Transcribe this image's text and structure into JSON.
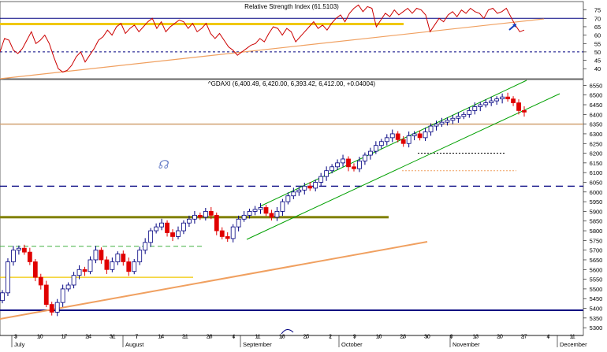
{
  "colors": {
    "background": "#ffffff",
    "bull": "#000080",
    "bear": "#e00000",
    "rsi_line": "#cc0000",
    "trend_orange": "#f0a060",
    "support_tan": "#d0a070",
    "olive": "#808000",
    "yellow": "#f0c800",
    "navy": "#000080",
    "channel_green": "#00a000",
    "green_dash": "#40b040",
    "grid_text": "#000000"
  },
  "chart_data": [
    {
      "type": "line",
      "id": "rsi",
      "title": "Relative Strength Index (61.5103)",
      "yticks": [
        40,
        45,
        50,
        55,
        60,
        65,
        70,
        75
      ],
      "ylim": [
        34,
        80
      ],
      "levels": {
        "upper": 70,
        "lower": 50
      },
      "series": [
        {
          "values": [
            50,
            58,
            57,
            51,
            49,
            52,
            57,
            62,
            55,
            57,
            60,
            55,
            47,
            40,
            38,
            39,
            42,
            47,
            50,
            44,
            48,
            52,
            57,
            59,
            63,
            60,
            65,
            67,
            61,
            64,
            66,
            62,
            65,
            68,
            70,
            64,
            68,
            62,
            65,
            67,
            69,
            68,
            64,
            67,
            62,
            64,
            67,
            61,
            58,
            61,
            57,
            53,
            51,
            48,
            50,
            52,
            54,
            55,
            58,
            56,
            61,
            65,
            64,
            60,
            64,
            62,
            56,
            59,
            62,
            65,
            68,
            64,
            66,
            63,
            67,
            70,
            72,
            68,
            73,
            76,
            78,
            74,
            77,
            76,
            65,
            69,
            73,
            71,
            75,
            72,
            74,
            76,
            73,
            76,
            75,
            72,
            62,
            66,
            70,
            68,
            72,
            74,
            71,
            75,
            73,
            76,
            74,
            73,
            70,
            75,
            76,
            73,
            74,
            76,
            71,
            66,
            62,
            63
          ]
        }
      ]
    },
    {
      "type": "candlestick",
      "id": "price",
      "title": "^GDAXI (6,400.49, 6,420.00, 6,393.42, 6,412.00, +0.04004)",
      "ylim": [
        5260,
        6580
      ],
      "yticks": [
        5300,
        5350,
        5400,
        5450,
        5500,
        5550,
        5600,
        5650,
        5700,
        5750,
        5800,
        5850,
        5900,
        5950,
        6000,
        6050,
        6100,
        6150,
        6200,
        6250,
        6300,
        6350,
        6400,
        6450,
        6500,
        6550
      ],
      "xticks": [
        "3",
        "10",
        "17",
        "24",
        "31",
        "7",
        "14",
        "21",
        "28",
        "4",
        "11",
        "18",
        "25",
        "2",
        "9",
        "16",
        "23",
        "30",
        "6",
        "13",
        "20",
        "27",
        "4",
        "11"
      ],
      "months": [
        "July",
        "August",
        "September",
        "October",
        "November",
        "December"
      ],
      "levels": {
        "support_tan": 6350,
        "upper_dash": 6030,
        "olive_band": 5870,
        "bottom_navy": 5390,
        "green_dash": 5720,
        "yellow_low": 5560,
        "short_dots": 6200,
        "short_orange_dots": 6110
      },
      "closes": [
        5480,
        5640,
        5700,
        5710,
        5690,
        5640,
        5560,
        5520,
        5420,
        5380,
        5430,
        5500,
        5520,
        5570,
        5600,
        5590,
        5650,
        5700,
        5650,
        5600,
        5640,
        5680,
        5640,
        5590,
        5640,
        5700,
        5740,
        5800,
        5820,
        5840,
        5790,
        5770,
        5800,
        5840,
        5860,
        5880,
        5870,
        5900,
        5880,
        5800,
        5770,
        5760,
        5820,
        5860,
        5880,
        5900,
        5910,
        5920,
        5890,
        5870,
        5900,
        5950,
        5980,
        6000,
        6010,
        6030,
        6020,
        6050,
        6080,
        6110,
        6130,
        6150,
        6170,
        6130,
        6120,
        6160,
        6190,
        6210,
        6240,
        6260,
        6280,
        6300,
        6270,
        6250,
        6290,
        6300,
        6280,
        6310,
        6340,
        6350,
        6360,
        6370,
        6380,
        6390,
        6400,
        6420,
        6440,
        6450,
        6460,
        6470,
        6480,
        6490,
        6480,
        6460,
        6420,
        6412
      ]
    }
  ]
}
